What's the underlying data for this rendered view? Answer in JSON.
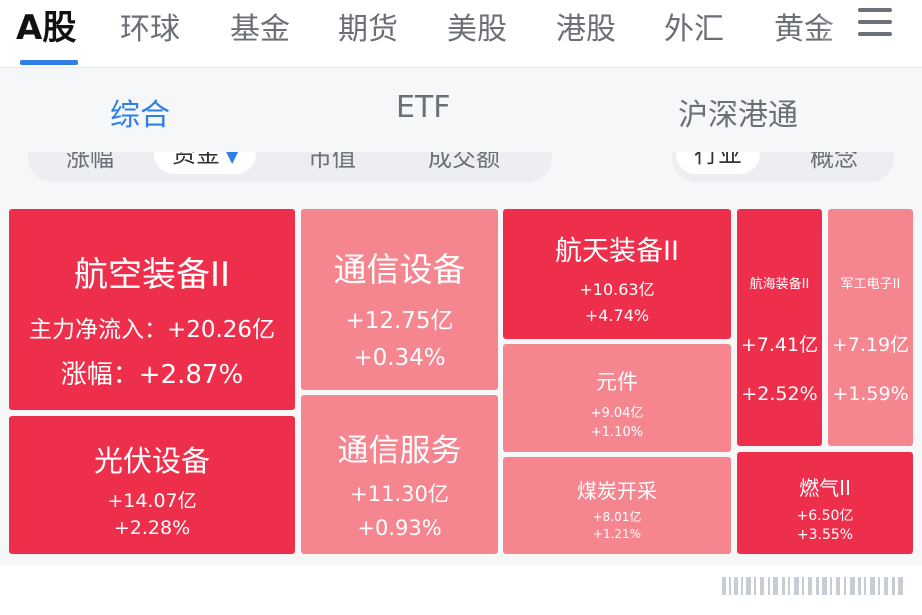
{
  "market_tabs": [
    "A股",
    "环球",
    "基金",
    "期货",
    "美股",
    "港股",
    "外汇",
    "黄金"
  ],
  "sub_tabs": [
    "综合",
    "ETF",
    "沪深港通"
  ],
  "filters": {
    "left": [
      "涨幅",
      "资金",
      "市值",
      "成交额"
    ],
    "right": [
      "行业",
      "概念"
    ]
  },
  "heatmap": {
    "tiles": [
      {
        "name": "航空装备II",
        "l1": "主力净流入：+20.26亿",
        "l2": "涨幅：+2.87%"
      },
      {
        "name": "光伏设备",
        "l1": "+14.07亿",
        "l2": "+2.28%"
      },
      {
        "name": "通信设备",
        "l1": "+12.75亿",
        "l2": "+0.34%"
      },
      {
        "name": "通信服务",
        "l1": "+11.30亿",
        "l2": "+0.93%"
      },
      {
        "name": "航天装备II",
        "l1": "+10.63亿",
        "l2": "+4.74%"
      },
      {
        "name": "元件",
        "l1": "+9.04亿",
        "l2": "+1.10%"
      },
      {
        "name": "煤炭开采",
        "l1": "+8.01亿",
        "l2": "+1.21%"
      },
      {
        "name": "航海装备II",
        "l1": "+7.41亿",
        "l2": "+2.52%"
      },
      {
        "name": "军工电子II",
        "l1": "+7.19亿",
        "l2": "+1.59%"
      },
      {
        "name": "燃气II",
        "l1": "+6.50亿",
        "l2": "+3.55%"
      }
    ]
  },
  "colors": {
    "accent": "#2f7fe6",
    "tile_strong": "#ee2f4b",
    "tile_light": "#f5858f"
  },
  "icons": {
    "menu": "hamburger-menu-icon",
    "caret": "caret-down-icon"
  }
}
